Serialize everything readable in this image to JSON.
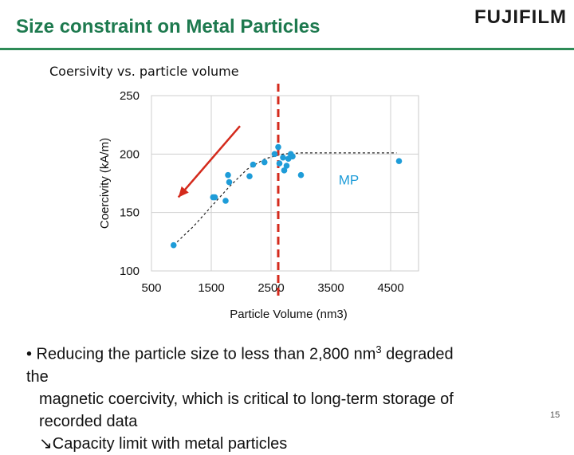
{
  "slide": {
    "title": "Size constraint on Metal Particles",
    "logo": "FUJIFILM",
    "page_number": "15"
  },
  "chart_data": {
    "type": "scatter",
    "title": "Coersivity vs. particle volume",
    "xlabel": "Particle Volume (nm3)",
    "ylabel": "Coercivity (kA/m)",
    "xlim": [
      500,
      4800
    ],
    "ylim": [
      100,
      250
    ],
    "x_ticks": [
      "500",
      "1500",
      "2500",
      "3500",
      "4500"
    ],
    "y_ticks": [
      "100",
      "150",
      "200",
      "250"
    ],
    "grid": true,
    "series": [
      {
        "points": [
          [
            870,
            122
          ],
          [
            1530,
            163
          ],
          [
            1560,
            163
          ],
          [
            1740,
            160
          ],
          [
            1780,
            182
          ],
          [
            1800,
            176
          ],
          [
            2140,
            181
          ],
          [
            2200,
            191
          ],
          [
            2390,
            193
          ],
          [
            2560,
            200
          ],
          [
            2620,
            206
          ],
          [
            2640,
            192
          ],
          [
            2700,
            197
          ],
          [
            2720,
            186
          ],
          [
            2760,
            190
          ],
          [
            2790,
            196
          ],
          [
            2830,
            200
          ],
          [
            2860,
            198
          ],
          [
            3000,
            182
          ],
          [
            4640,
            194
          ]
        ],
        "color": "#1e9cd8"
      }
    ],
    "trend_curve": [
      [
        870,
        122
      ],
      [
        1200,
        138
      ],
      [
        1500,
        155
      ],
      [
        1800,
        172
      ],
      [
        2100,
        187
      ],
      [
        2400,
        196
      ],
      [
        2700,
        200
      ],
      [
        3000,
        201
      ],
      [
        3500,
        201
      ],
      [
        4000,
        201
      ],
      [
        4600,
        201
      ]
    ],
    "threshold_x": 2620,
    "arrow": {
      "from": [
        1980,
        224
      ],
      "to": [
        950,
        163
      ],
      "color": "#d42a1c"
    },
    "annotations": [
      {
        "text": "MP",
        "x": 3630,
        "y": 178,
        "color": "#1e9cd8"
      }
    ],
    "threshold_color": "#d42a1c"
  },
  "body": {
    "bullet_line1": "• Reducing the particle size to less than 2,800 nm",
    "bullet_sup": "3",
    "bullet_line1_end": " degraded",
    "bullet_line2": "the",
    "bullet_line3": "magnetic coercivity, which is critical to long-term storage of",
    "bullet_line4": "recorded data",
    "bullet_line5": "↘Capacity limit with metal particles"
  }
}
